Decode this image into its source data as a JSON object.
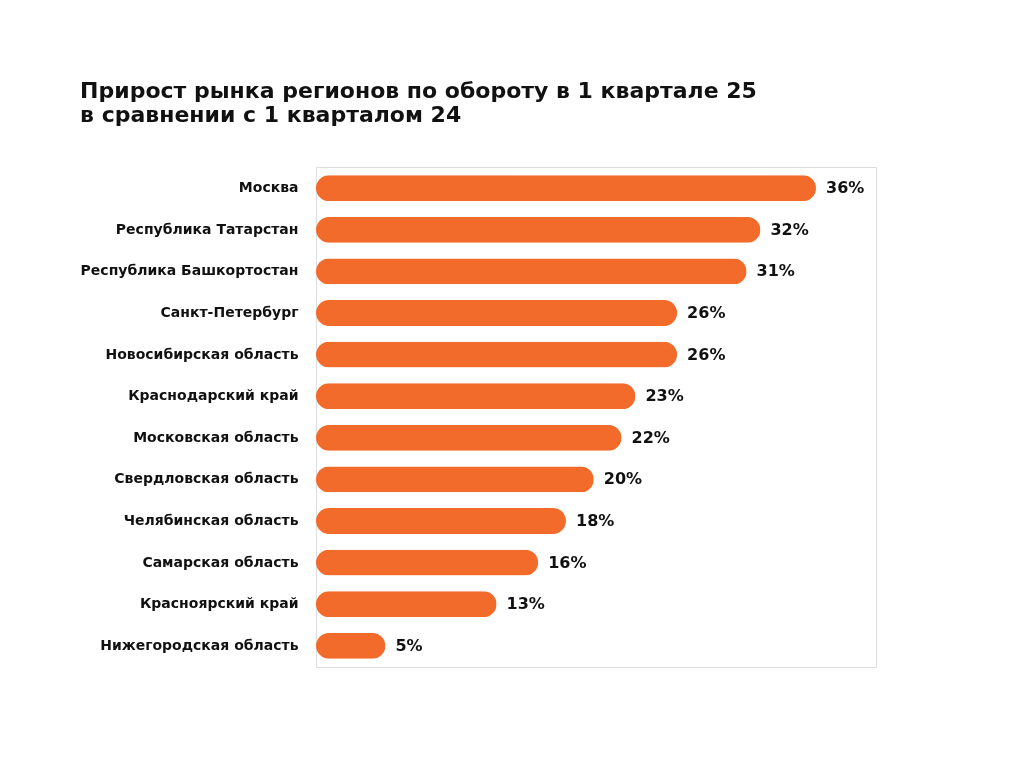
{
  "chart_data": {
    "type": "bar",
    "orientation": "horizontal",
    "title": "Прирост рынка регионов по обороту в 1 квартале 25 в сравнении с 1 кварталом 24",
    "categories": [
      "Москва",
      "Республика Татарстан",
      "Республика Башкортостан",
      "Санкт-Петербург",
      "Новосибирская область",
      "Краснодарский край",
      "Московская область",
      "Свердловская область",
      "Челябинская область",
      "Самарская область",
      "Красноярский край",
      "Нижегородская область"
    ],
    "values": [
      36,
      32,
      31,
      26,
      26,
      23,
      22,
      20,
      18,
      16,
      13,
      5
    ],
    "value_labels": [
      "36%",
      "32%",
      "31%",
      "26%",
      "26%",
      "23%",
      "22%",
      "20%",
      "18%",
      "16%",
      "13%",
      "5%"
    ],
    "color": "#f26b2a"
  }
}
